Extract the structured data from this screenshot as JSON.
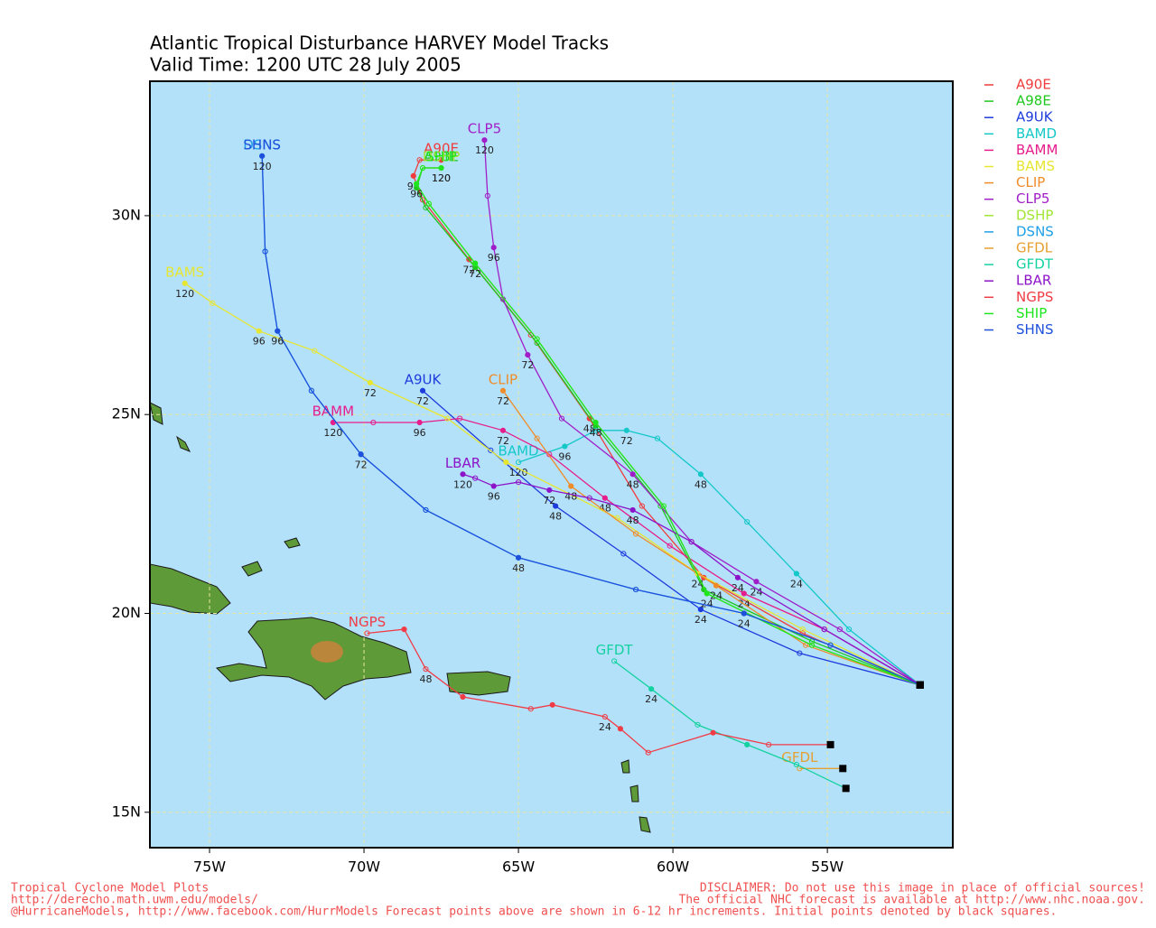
{
  "chart_data": {
    "type": "track-map",
    "title": "Atlantic Tropical Disturbance HARVEY Model Tracks",
    "subtitle": "Valid Time: 1200 UTC 28 July 2005",
    "xlim": [
      -76.93,
      -50.94
    ],
    "ylim": [
      14.11,
      33.38
    ],
    "xticks": [
      {
        "value": -75,
        "label": "75W"
      },
      {
        "value": -70,
        "label": "70W"
      },
      {
        "value": -65,
        "label": "65W"
      },
      {
        "value": -60,
        "label": "60W"
      },
      {
        "value": -55,
        "label": "55W"
      }
    ],
    "yticks": [
      {
        "value": 15,
        "label": "15N"
      },
      {
        "value": 20,
        "label": "20N"
      },
      {
        "value": 25,
        "label": "25N"
      },
      {
        "value": 30,
        "label": "30N"
      }
    ],
    "grid": true,
    "legend": "outside-right",
    "series": [
      {
        "name": "A90E",
        "color": "#f03c3c",
        "x": [
          -52.0,
          -55.8,
          -59.0,
          -61.0,
          -62.7,
          -64.6,
          -66.6,
          -68.1,
          -68.4,
          -68.2,
          -67.5
        ],
        "values": [
          18.2,
          19.5,
          20.9,
          22.7,
          24.9,
          27.0,
          28.9,
          30.4,
          31.0,
          31.4,
          31.4
        ],
        "point_labels": [
          null,
          null,
          null,
          null,
          48,
          null,
          72,
          null,
          96,
          null,
          null
        ]
      },
      {
        "name": "A98E",
        "color": "#1ec81e",
        "x": [
          -52.0,
          -55.5,
          -59.0,
          -60.4,
          -62.5,
          -64.4,
          -66.4,
          -68.0,
          -68.3,
          -68.1,
          -67.5
        ],
        "values": [
          18.2,
          19.3,
          20.6,
          22.7,
          24.7,
          26.8,
          28.7,
          30.2,
          30.7,
          31.2,
          31.2
        ],
        "point_labels": [
          null,
          null,
          null,
          null,
          null,
          null,
          null,
          null,
          null,
          null,
          120
        ]
      },
      {
        "name": "A9UK",
        "color": "#1e3cdc",
        "x": [
          -52.0,
          -55.9,
          -59.1,
          -61.6,
          -63.8,
          -65.9,
          -68.1
        ],
        "values": [
          18.2,
          19.0,
          20.1,
          21.5,
          22.7,
          24.1,
          25.6
        ],
        "point_labels": [
          null,
          null,
          24,
          null,
          48,
          null,
          72
        ]
      },
      {
        "name": "BAMD",
        "color": "#14c8c8",
        "x": [
          -52.0,
          -54.3,
          -56.0,
          -57.6,
          -59.1,
          -60.5,
          -61.5,
          -62.5,
          -63.5,
          -65.0
        ],
        "values": [
          18.2,
          19.6,
          21.0,
          22.3,
          23.5,
          24.4,
          24.6,
          24.6,
          24.2,
          23.8
        ],
        "point_labels": [
          null,
          null,
          24,
          null,
          48,
          null,
          72,
          null,
          96,
          120
        ]
      },
      {
        "name": "BAMM",
        "color": "#e61e8c",
        "x": [
          -52.0,
          -55.1,
          -57.7,
          -60.1,
          -62.2,
          -64.0,
          -65.5,
          -66.9,
          -68.2,
          -69.7,
          -71.0
        ],
        "values": [
          18.2,
          19.6,
          20.5,
          21.7,
          22.9,
          24.0,
          24.6,
          24.9,
          24.8,
          24.8,
          24.8
        ],
        "point_labels": [
          null,
          null,
          24,
          null,
          48,
          null,
          72,
          null,
          96,
          null,
          120
        ]
      },
      {
        "name": "BAMS",
        "color": "#e6e632",
        "x": [
          -52.0,
          -55.8,
          -59.2,
          -61.8,
          -65.4,
          -67.3,
          -69.8,
          -71.6,
          -73.4,
          -74.9,
          -75.8
        ],
        "values": [
          18.2,
          19.6,
          21.0,
          22.4,
          23.8,
          24.9,
          25.8,
          26.6,
          27.1,
          27.8,
          28.3
        ],
        "point_labels": [
          null,
          null,
          24,
          null,
          null,
          null,
          72,
          null,
          96,
          null,
          120
        ]
      },
      {
        "name": "CLIP",
        "color": "#f08c28",
        "x": [
          -52.0,
          -55.7,
          -58.6,
          -61.2,
          -63.3,
          -64.4,
          -65.5
        ],
        "values": [
          18.2,
          19.2,
          20.7,
          22.0,
          23.2,
          24.4,
          25.6
        ],
        "point_labels": [
          null,
          null,
          24,
          null,
          48,
          null,
          72
        ]
      },
      {
        "name": "CLP5",
        "color": "#a01ec8",
        "x": [
          -52.0,
          -54.6,
          -57.3,
          -59.4,
          -61.3,
          -63.6,
          -64.7,
          -65.5,
          -65.8,
          -66.0,
          -66.1
        ],
        "values": [
          18.2,
          19.6,
          20.8,
          21.8,
          23.5,
          24.9,
          26.5,
          27.9,
          29.2,
          30.5,
          31.9
        ],
        "point_labels": [
          null,
          null,
          24,
          null,
          48,
          null,
          72,
          null,
          96,
          null,
          120
        ]
      },
      {
        "name": "DSHP",
        "color": "#a0e632",
        "x": [
          -52.0,
          -55.5,
          -58.9,
          -60.3,
          -62.5,
          -64.4,
          -66.4,
          -67.9,
          -68.3,
          -68.1,
          -67.5
        ],
        "values": [
          18.2,
          19.2,
          20.5,
          22.7,
          24.8,
          26.9,
          28.8,
          30.3,
          30.8,
          31.2,
          31.2
        ],
        "point_labels": [
          null,
          null,
          null,
          null,
          null,
          null,
          null,
          null,
          null,
          null,
          null
        ]
      },
      {
        "name": "DSNS",
        "color": "#1ea0e6",
        "x": [
          -52.0,
          -54.9,
          -57.7,
          -61.2,
          -65.0,
          -68.0,
          -70.1,
          -71.7,
          -72.8,
          -73.2,
          -73.3
        ],
        "values": [
          18.2,
          19.2,
          20.0,
          20.6,
          21.4,
          22.6,
          24.0,
          25.6,
          27.1,
          29.1,
          31.5
        ],
        "point_labels": [
          null,
          null,
          null,
          null,
          null,
          null,
          null,
          null,
          null,
          null,
          null
        ]
      },
      {
        "name": "GFDL",
        "color": "#e6a032",
        "x": [
          -54.5,
          -55.9
        ],
        "values": [
          16.1,
          16.1
        ],
        "point_labels": [
          null,
          null
        ]
      },
      {
        "name": "GFDT",
        "color": "#14d2a0",
        "x": [
          -54.4,
          -56.0,
          -57.6,
          -59.2,
          -60.7,
          -61.9
        ],
        "values": [
          15.6,
          16.2,
          16.7,
          17.2,
          18.1,
          18.8
        ],
        "point_labels": [
          null,
          null,
          null,
          null,
          24,
          null
        ]
      },
      {
        "name": "LBAR",
        "color": "#8c14c8",
        "x": [
          -52.0,
          -55.1,
          -57.9,
          -59.4,
          -61.3,
          -62.7,
          -64.0,
          -65.0,
          -65.8,
          -66.4,
          -66.8
        ],
        "values": [
          18.2,
          19.6,
          20.9,
          21.8,
          22.6,
          22.9,
          23.1,
          23.3,
          23.2,
          23.4,
          23.5
        ],
        "point_labels": [
          null,
          null,
          24,
          null,
          48,
          null,
          72,
          null,
          96,
          null,
          120
        ]
      },
      {
        "name": "NGPS",
        "color": "#f03c46",
        "x": [
          -54.9,
          -56.9,
          -58.7,
          -60.8,
          -61.7,
          -62.2,
          -63.9,
          -64.6,
          -66.8,
          -68.0,
          -68.7,
          -69.9
        ],
        "values": [
          16.7,
          16.7,
          17.0,
          16.5,
          17.1,
          17.4,
          17.7,
          17.6,
          17.9,
          18.6,
          19.6,
          19.5
        ],
        "point_labels": [
          null,
          null,
          null,
          null,
          null,
          24,
          null,
          null,
          null,
          48,
          null,
          null
        ]
      },
      {
        "name": "SHIP",
        "color": "#1ee61e",
        "x": [
          -52.0,
          -55.5,
          -58.9,
          -60.3,
          -62.5,
          -64.4,
          -66.4,
          -67.9,
          -68.3,
          -68.1,
          -67.5
        ],
        "values": [
          18.2,
          19.2,
          20.5,
          22.7,
          24.8,
          26.9,
          28.8,
          30.3,
          30.8,
          31.2,
          31.2
        ],
        "point_labels": [
          null,
          null,
          24,
          null,
          48,
          null,
          72,
          null,
          96,
          null,
          120
        ]
      },
      {
        "name": "SHNS",
        "color": "#1e50dc",
        "x": [
          -52.0,
          -54.9,
          -57.7,
          -61.2,
          -65.0,
          -68.0,
          -70.1,
          -71.7,
          -72.8,
          -73.2,
          -73.3
        ],
        "values": [
          18.2,
          19.2,
          20.0,
          20.6,
          21.4,
          22.6,
          24.0,
          25.6,
          27.1,
          29.1,
          31.5
        ],
        "point_labels": [
          null,
          null,
          24,
          null,
          48,
          null,
          72,
          null,
          96,
          null,
          120
        ]
      }
    ],
    "footer": {
      "left_lines": [
        "Tropical Cyclone Model Plots",
        "http://derecho.math.uwm.edu/models/",
        "@HurricaneModels, http://www.facebook.com/HurrModels  Forecast points above are shown in 6-12 hr increments.  Initial points denoted by black squares."
      ],
      "right_lines": [
        "DISCLAIMER: Do not use this image in place of official sources!",
        "The official NHC forecast is available at http://www.nhc.noaa.gov."
      ]
    }
  }
}
